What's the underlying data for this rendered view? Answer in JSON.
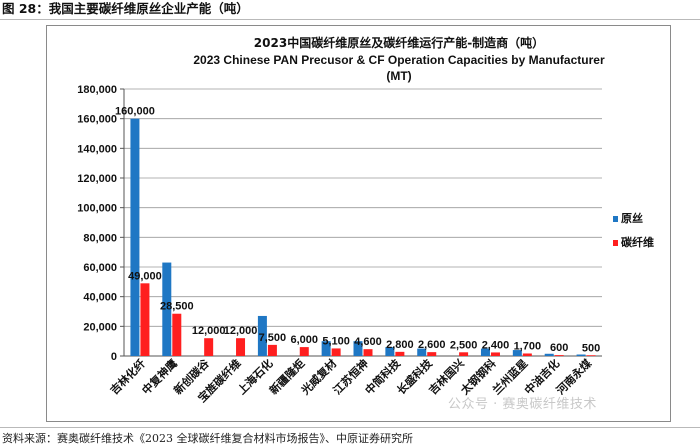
{
  "figure": {
    "title": "图 28：我国主要碳纤维原丝企业产能（吨）",
    "source": "资料来源：赛奥碳纤维技术《2023 全球碳纤维复合材料市场报告》、中原证券研究所",
    "watermark": "公众号 · 赛奥碳纤维技术"
  },
  "chart_data": {
    "type": "bar",
    "title": "2023中国碳纤维原丝及碳纤维运行产能-制造商（吨）",
    "subtitle": "2023 Chinese PAN Precusor & CF Operation Capacities by Manufacturer",
    "subtitle2": "(MT)",
    "ylim": [
      0,
      180000
    ],
    "yticks": [
      0,
      20000,
      40000,
      60000,
      80000,
      100000,
      120000,
      140000,
      160000,
      180000
    ],
    "ytick_labels": [
      "0",
      "20,000",
      "40,000",
      "60,000",
      "80,000",
      "100,000",
      "120,000",
      "140,000",
      "160,000",
      "180,000"
    ],
    "grid": true,
    "legend_position": "right",
    "categories": [
      "吉林化纤",
      "中复神鹰",
      "新创碳谷",
      "宝旌碳纤维",
      "上海石化",
      "新疆隆炬",
      "光威复材",
      "江苏恒神",
      "中简科技",
      "长盛科技",
      "吉林国兴",
      "太钢钢科",
      "兰州蓝星",
      "中油吉化",
      "河南永煤"
    ],
    "series": [
      {
        "name": "原丝",
        "color": "#1f77c4",
        "values": [
          160000,
          63000,
          null,
          null,
          27000,
          null,
          10000,
          10000,
          6000,
          5000,
          null,
          5000,
          4000,
          1500,
          1000
        ],
        "labels": [
          "160,000",
          "",
          "",
          "",
          "",
          "",
          "",
          "",
          "",
          "",
          "",
          "",
          "",
          "",
          ""
        ]
      },
      {
        "name": "碳纤维",
        "color": "#ff1f1f",
        "values": [
          49000,
          28500,
          12000,
          12000,
          7500,
          6000,
          5100,
          4600,
          2800,
          2600,
          2500,
          2400,
          1700,
          600,
          500
        ],
        "labels": [
          "49,000",
          "28,500",
          "12,000",
          "12,000",
          "7,500",
          "6,000",
          "5,100",
          "4,600",
          "2,800",
          "2,600",
          "2,500",
          "2,400",
          "1,700",
          "600",
          "500"
        ]
      }
    ]
  }
}
